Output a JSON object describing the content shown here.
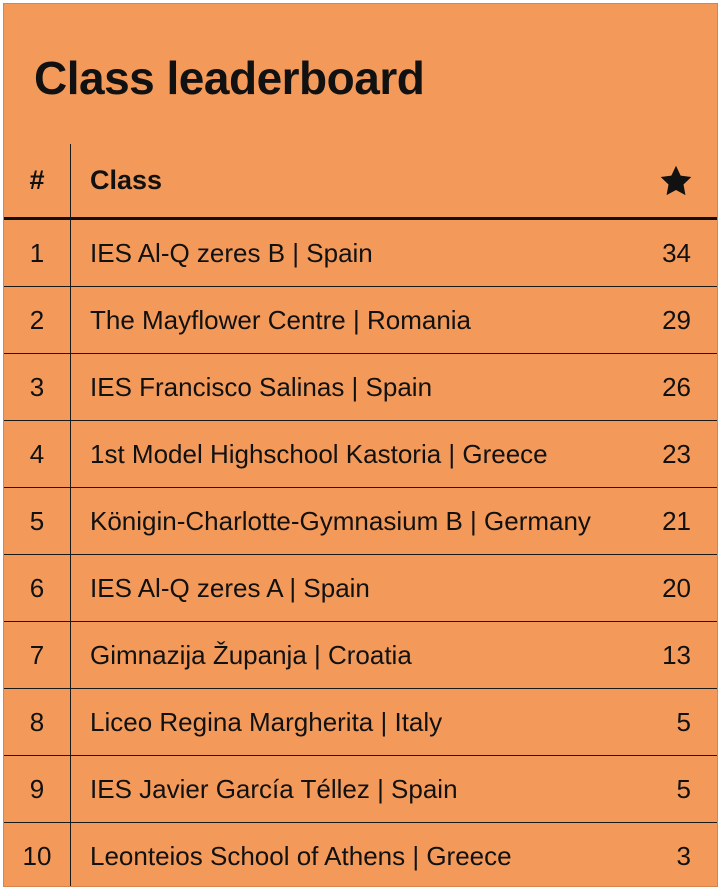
{
  "title": "Class leaderboard",
  "header": {
    "rank": "#",
    "class": "Class",
    "score_icon": "star-icon"
  },
  "rows": [
    {
      "rank": "1",
      "class": "IES Al-Q zeres B | Spain",
      "score": "34"
    },
    {
      "rank": "2",
      "class": "The Mayflower Centre | Romania",
      "score": "29"
    },
    {
      "rank": "3",
      "class": "IES Francisco Salinas | Spain",
      "score": "26"
    },
    {
      "rank": "4",
      "class": "1st Model Highschool Kastoria | Greece",
      "score": "23"
    },
    {
      "rank": "5",
      "class": "Königin-Charlotte-Gymnasium B | Germany",
      "score": "21"
    },
    {
      "rank": "6",
      "class": "IES Al-Q zeres A | Spain",
      "score": "20"
    },
    {
      "rank": "7",
      "class": "Gimnazija Županja | Croatia",
      "score": "13"
    },
    {
      "rank": "8",
      "class": "Liceo Regina Margherita | Italy",
      "score": "5"
    },
    {
      "rank": "9",
      "class": "IES Javier García Téllez | Spain",
      "score": "5"
    },
    {
      "rank": "10",
      "class": "Leonteios School of Athens | Greece",
      "score": "3"
    }
  ],
  "colors": {
    "background": "#F39A5B",
    "text": "#111111"
  }
}
